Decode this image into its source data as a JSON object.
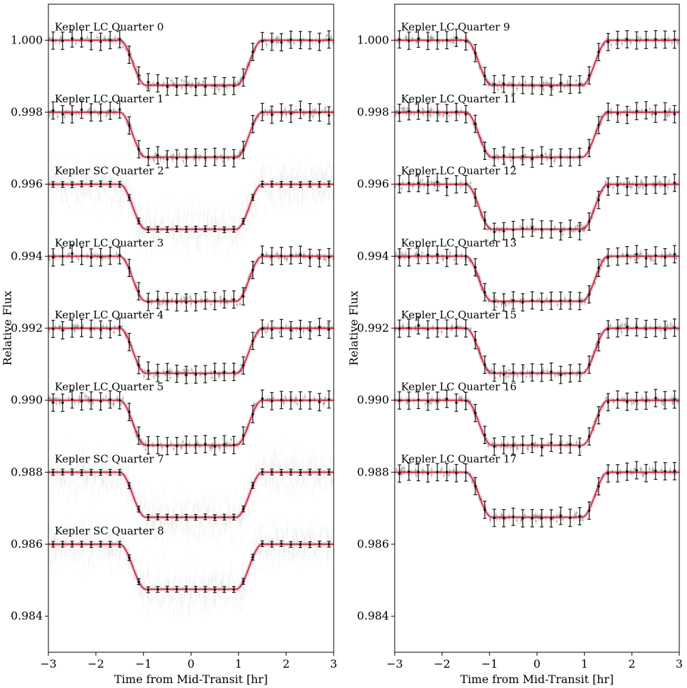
{
  "chart_data": [
    {
      "type": "line",
      "xlabel": "Time from Mid-Transit [hr]",
      "ylabel": "Relative Flux",
      "xlim": [
        -3,
        3
      ],
      "ylim": [
        0.983,
        1.001
      ],
      "xticks": [
        "−3",
        "−2",
        "−1",
        "0",
        "1",
        "2",
        "3"
      ],
      "yticks": [
        "1.000",
        "0.998",
        "0.996",
        "0.994",
        "0.992",
        "0.990",
        "0.988",
        "0.986",
        "0.984"
      ],
      "colors": {
        "model": "#c8102e",
        "binned": "#111111",
        "unbinned": "#9a9a9a"
      },
      "transit_shape": {
        "depth": 0.00125,
        "t_half": 1.5,
        "t_ingress": 0.55
      },
      "series": [
        {
          "name": "Kepler LC Quarter 0",
          "offset": 1.0,
          "cadence": "LC"
        },
        {
          "name": "Kepler LC Quarter 1",
          "offset": 0.998,
          "cadence": "LC"
        },
        {
          "name": "Kepler SC Quarter 2",
          "offset": 0.996,
          "cadence": "SC"
        },
        {
          "name": "Kepler LC Quarter 3",
          "offset": 0.994,
          "cadence": "LC"
        },
        {
          "name": "Kepler LC Quarter 4",
          "offset": 0.992,
          "cadence": "LC"
        },
        {
          "name": "Kepler LC Quarter 5",
          "offset": 0.99,
          "cadence": "LC"
        },
        {
          "name": "Kepler SC Quarter 7",
          "offset": 0.988,
          "cadence": "SC"
        },
        {
          "name": "Kepler SC Quarter 8",
          "offset": 0.986,
          "cadence": "SC"
        }
      ]
    },
    {
      "type": "line",
      "xlabel": "Time from Mid-Transit [hr]",
      "ylabel": "Relative Flux",
      "xlim": [
        -3,
        3
      ],
      "ylim": [
        0.983,
        1.001
      ],
      "xticks": [
        "−3",
        "−2",
        "−1",
        "0",
        "1",
        "2",
        "3"
      ],
      "yticks": [
        "1.000",
        "0.998",
        "0.996",
        "0.994",
        "0.992",
        "0.990",
        "0.988",
        "0.986",
        "0.984"
      ],
      "colors": {
        "model": "#c8102e",
        "binned": "#111111",
        "unbinned": "#9a9a9a"
      },
      "transit_shape": {
        "depth": 0.00125,
        "t_half": 1.5,
        "t_ingress": 0.55
      },
      "series": [
        {
          "name": "Kepler LC Quarter 9",
          "offset": 1.0,
          "cadence": "LC"
        },
        {
          "name": "Kepler LC Quarter 11",
          "offset": 0.998,
          "cadence": "LC"
        },
        {
          "name": "Kepler LC Quarter 12",
          "offset": 0.996,
          "cadence": "LC"
        },
        {
          "name": "Kepler LC Quarter 13",
          "offset": 0.994,
          "cadence": "LC"
        },
        {
          "name": "Kepler LC Quarter 15",
          "offset": 0.992,
          "cadence": "LC"
        },
        {
          "name": "Kepler LC Quarter 16",
          "offset": 0.99,
          "cadence": "LC"
        },
        {
          "name": "Kepler LC Quarter 17",
          "offset": 0.988,
          "cadence": "LC"
        }
      ]
    }
  ]
}
